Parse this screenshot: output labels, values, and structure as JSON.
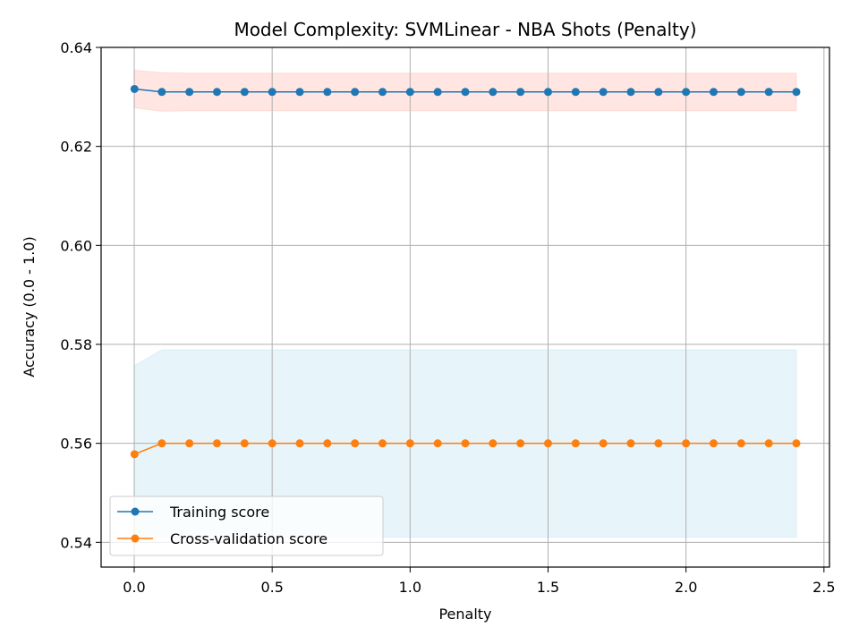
{
  "chart_data": {
    "type": "line",
    "title": "Model Complexity: SVMLinear - NBA Shots (Penalty)",
    "xlabel": "Penalty",
    "ylabel": "Accuracy (0.0 - 1.0)",
    "xlim": [
      -0.12,
      2.52
    ],
    "ylim": [
      0.535,
      0.64
    ],
    "xticks": [
      0.0,
      0.5,
      1.0,
      1.5,
      2.0,
      2.5
    ],
    "xtick_labels": [
      "0.0",
      "0.5",
      "1.0",
      "1.5",
      "2.0",
      "2.5"
    ],
    "yticks": [
      0.54,
      0.56,
      0.58,
      0.6,
      0.62,
      0.64
    ],
    "ytick_labels": [
      "0.54",
      "0.56",
      "0.58",
      "0.60",
      "0.62",
      "0.64"
    ],
    "grid": true,
    "legend_position": "lower-left",
    "x": [
      0.001,
      0.1,
      0.2,
      0.3,
      0.4,
      0.5,
      0.6,
      0.7,
      0.8,
      0.9,
      1.0,
      1.1,
      1.2,
      1.3,
      1.4,
      1.5,
      1.6,
      1.7,
      1.8,
      1.9,
      2.0,
      2.1,
      2.2,
      2.3,
      2.4
    ],
    "series": [
      {
        "name": "Training score",
        "color": "#1f77b4",
        "band_color": "#ff9a8a",
        "values": [
          0.6316,
          0.631,
          0.631,
          0.631,
          0.631,
          0.631,
          0.631,
          0.631,
          0.631,
          0.631,
          0.631,
          0.631,
          0.631,
          0.631,
          0.631,
          0.631,
          0.631,
          0.631,
          0.631,
          0.631,
          0.631,
          0.631,
          0.631,
          0.631,
          0.631
        ],
        "band_upper": [
          0.6354,
          0.6349,
          0.6348,
          0.6348,
          0.6348,
          0.6348,
          0.6348,
          0.6348,
          0.6348,
          0.6348,
          0.6348,
          0.6348,
          0.6348,
          0.6348,
          0.6348,
          0.6348,
          0.6348,
          0.6348,
          0.6348,
          0.6348,
          0.6348,
          0.6348,
          0.6348,
          0.6348,
          0.6348
        ],
        "band_lower": [
          0.6278,
          0.6271,
          0.6272,
          0.6272,
          0.6272,
          0.6272,
          0.6272,
          0.6272,
          0.6272,
          0.6272,
          0.6272,
          0.6272,
          0.6272,
          0.6272,
          0.6272,
          0.6272,
          0.6272,
          0.6272,
          0.6272,
          0.6272,
          0.6272,
          0.6272,
          0.6272,
          0.6272,
          0.6272
        ]
      },
      {
        "name": "Cross-validation score",
        "color": "#ff7f0e",
        "band_color": "#9fd3ec",
        "values": [
          0.5578,
          0.56,
          0.56,
          0.56,
          0.56,
          0.56,
          0.56,
          0.56,
          0.56,
          0.56,
          0.56,
          0.56,
          0.56,
          0.56,
          0.56,
          0.56,
          0.56,
          0.56,
          0.56,
          0.56,
          0.56,
          0.56,
          0.56,
          0.56,
          0.56
        ],
        "band_upper": [
          0.5757,
          0.5789,
          0.5789,
          0.5789,
          0.5789,
          0.5789,
          0.5789,
          0.5789,
          0.5789,
          0.5789,
          0.5789,
          0.5789,
          0.5789,
          0.5789,
          0.5789,
          0.5789,
          0.5789,
          0.5789,
          0.5789,
          0.5789,
          0.5789,
          0.5789,
          0.5789,
          0.5789,
          0.5789
        ],
        "band_lower": [
          0.5415,
          0.541,
          0.541,
          0.541,
          0.541,
          0.541,
          0.541,
          0.541,
          0.541,
          0.541,
          0.541,
          0.541,
          0.541,
          0.541,
          0.541,
          0.541,
          0.541,
          0.541,
          0.541,
          0.541,
          0.541,
          0.541,
          0.541,
          0.541,
          0.541
        ]
      }
    ]
  }
}
